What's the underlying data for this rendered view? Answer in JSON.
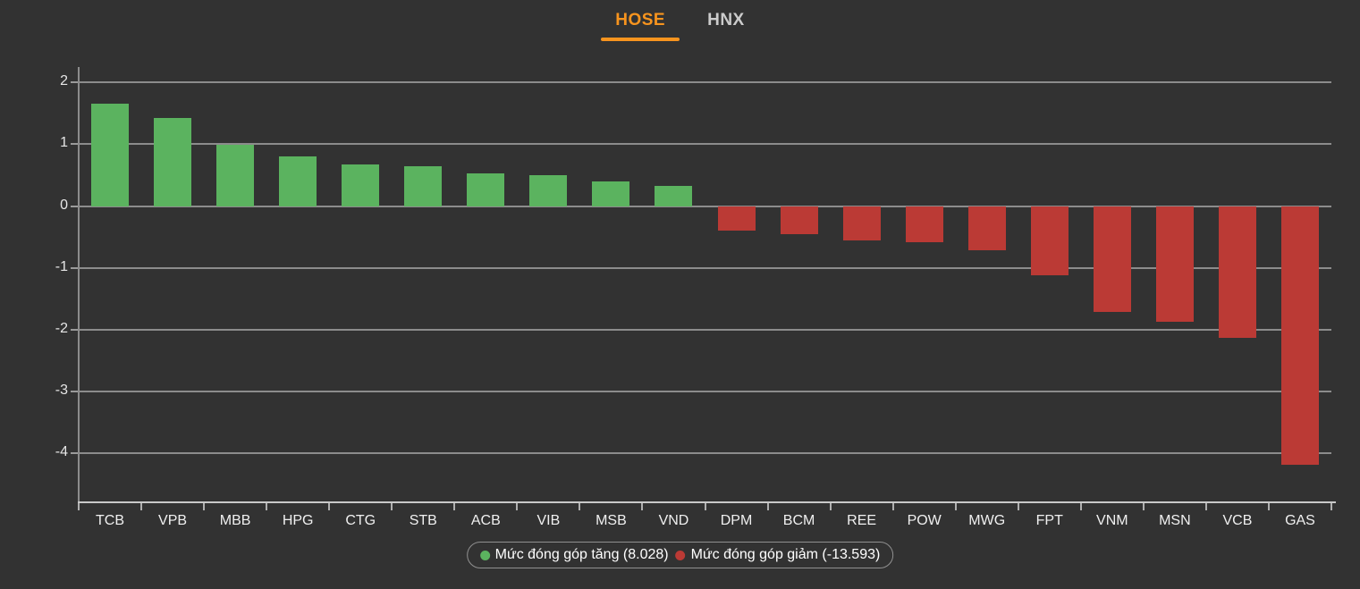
{
  "tabs": [
    {
      "label": "HOSE",
      "active": true
    },
    {
      "label": "HNX",
      "active": false
    }
  ],
  "colors": {
    "background": "#323232",
    "accent_orange": "#f7941e",
    "tab_inactive": "#cccccc",
    "positive": "#5bb35f",
    "negative": "#bb3a35",
    "grid": "#8c8c8c",
    "axis": "#c8c8c8",
    "label_text": "#f0f0f0"
  },
  "legend": {
    "items": [
      {
        "label": "Mức đóng góp tăng (8.028)",
        "color": "#5bb35f"
      },
      {
        "label": "Mức đóng góp giảm (-13.593)",
        "color": "#bb3a35"
      }
    ]
  },
  "chart_data": {
    "type": "bar",
    "title": "",
    "xlabel": "",
    "ylabel": "",
    "categories": [
      "TCB",
      "VPB",
      "MBB",
      "HPG",
      "CTG",
      "STB",
      "ACB",
      "VIB",
      "MSB",
      "VND",
      "DPM",
      "BCM",
      "REE",
      "POW",
      "MWG",
      "FPT",
      "VNM",
      "MSN",
      "VCB",
      "GAS"
    ],
    "values": [
      1.65,
      1.42,
      0.99,
      0.81,
      0.67,
      0.64,
      0.53,
      0.5,
      0.4,
      0.33,
      -0.4,
      -0.45,
      -0.55,
      -0.59,
      -0.72,
      -1.12,
      -1.72,
      -1.87,
      -2.14,
      -4.19
    ],
    "positive_color": "#5bb35f",
    "negative_color": "#bb3a35",
    "yticks": [
      2,
      1,
      0,
      -1,
      -2,
      -3,
      -4
    ],
    "ylim": [
      -4.78,
      2.25
    ],
    "grid": true,
    "legend_position": "bottom",
    "positive_total": "8.028",
    "negative_total": "-13.593"
  }
}
